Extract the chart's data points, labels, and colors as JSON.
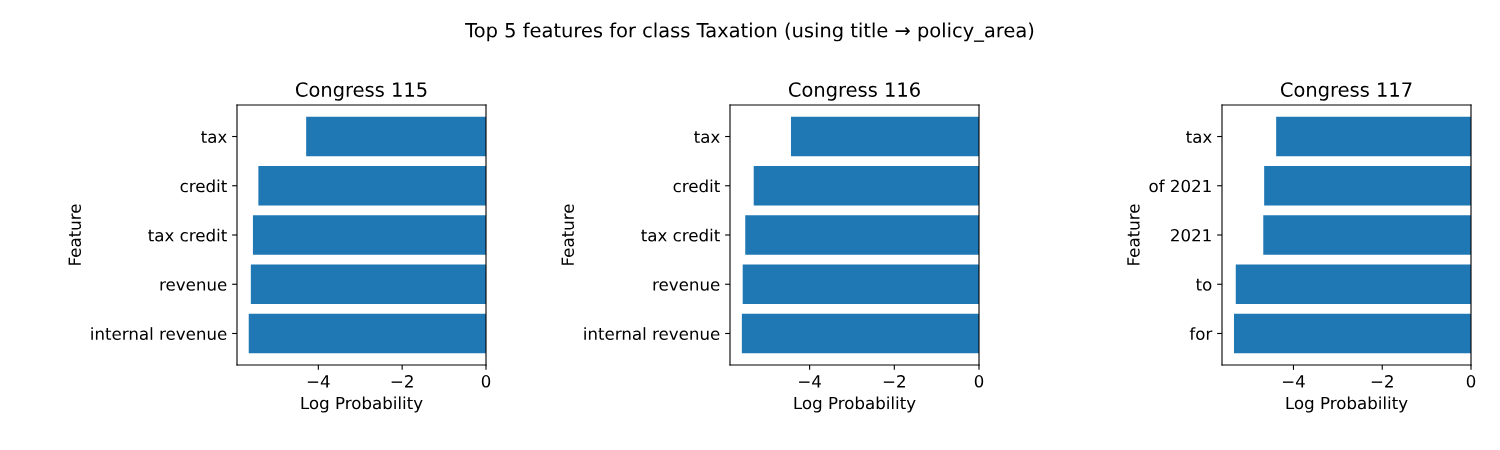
{
  "chart_data": [
    {
      "type": "bar",
      "orientation": "horizontal",
      "title": "Congress 115",
      "xlabel": "Log Probability",
      "ylabel": "Feature",
      "annotations": [
        "Top 5 features for class Taxation (using title → policy_area)"
      ],
      "categories": [
        "tax",
        "credit",
        "tax credit",
        "revenue",
        "internal revenue"
      ],
      "values": [
        -4.29,
        -5.43,
        -5.56,
        -5.61,
        -5.66
      ],
      "color": "#1f77b4",
      "xlim": [
        -5.94,
        0
      ],
      "xticks": [
        -4,
        -2,
        0
      ],
      "grid": false
    },
    {
      "type": "bar",
      "orientation": "horizontal",
      "title": "Congress 116",
      "xlabel": "Log Probability",
      "ylabel": "Feature",
      "categories": [
        "tax",
        "credit",
        "tax credit",
        "revenue",
        "internal revenue"
      ],
      "values": [
        -4.44,
        -5.32,
        -5.52,
        -5.58,
        -5.6
      ],
      "color": "#1f77b4",
      "xlim": [
        -5.88,
        0
      ],
      "xticks": [
        -4,
        -2,
        0
      ],
      "grid": false
    },
    {
      "type": "bar",
      "orientation": "horizontal",
      "title": "Congress 117",
      "xlabel": "Log Probability",
      "ylabel": "Feature",
      "categories": [
        "tax",
        "of 2021",
        "2021",
        "to",
        "for"
      ],
      "values": [
        -4.39,
        -4.66,
        -4.68,
        -5.3,
        -5.34
      ],
      "color": "#1f77b4",
      "xlim": [
        -5.61,
        0
      ],
      "xticks": [
        -4,
        -2,
        0
      ],
      "grid": false
    }
  ]
}
